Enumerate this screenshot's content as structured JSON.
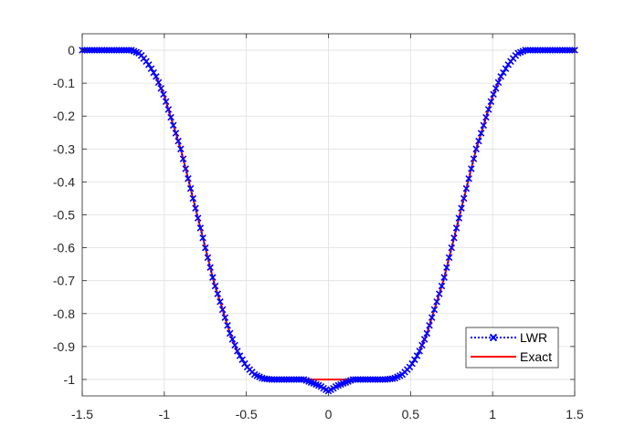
{
  "chart_data": {
    "type": "line",
    "title": "",
    "xlabel": "",
    "ylabel": "",
    "xlim": [
      -1.5,
      1.5
    ],
    "ylim": [
      -1.05,
      0.05
    ],
    "x_ticks": [
      "-1.5",
      "-1",
      "-0.5",
      "0",
      "0.5",
      "1",
      "1.5"
    ],
    "y_ticks": [
      "0",
      "-0.1",
      "-0.2",
      "-0.3",
      "-0.4",
      "-0.5",
      "-0.6",
      "-0.7",
      "-0.8",
      "-0.9",
      "-1"
    ],
    "grid": true,
    "legend_position": "bottom-right",
    "series": [
      {
        "name": "LWR",
        "color": "#0000ff",
        "style": "dotted line with x markers",
        "x": [
          -1.5,
          -1.4,
          -1.3,
          -1.2,
          -1.15,
          -1.1,
          -1.05,
          -1.0,
          -0.95,
          -0.9,
          -0.85,
          -0.8,
          -0.75,
          -0.7,
          -0.65,
          -0.6,
          -0.55,
          -0.5,
          -0.45,
          -0.4,
          -0.35,
          -0.3,
          -0.25,
          -0.2,
          -0.15,
          -0.1,
          -0.05,
          -0.02,
          0.0,
          0.02,
          0.05,
          0.1,
          0.15,
          0.2,
          0.25,
          0.3,
          0.35,
          0.4,
          0.45,
          0.5,
          0.55,
          0.6,
          0.65,
          0.7,
          0.75,
          0.8,
          0.85,
          0.9,
          0.95,
          1.0,
          1.05,
          1.1,
          1.15,
          1.2,
          1.3,
          1.4,
          1.5
        ],
        "values": [
          0,
          0,
          0,
          0,
          -0.01,
          -0.04,
          -0.08,
          -0.14,
          -0.22,
          -0.3,
          -0.4,
          -0.5,
          -0.6,
          -0.7,
          -0.78,
          -0.86,
          -0.92,
          -0.96,
          -0.985,
          -0.997,
          -1.0,
          -1.0,
          -1.0,
          -1.0,
          -1.0,
          -1.01,
          -1.02,
          -1.03,
          -1.035,
          -1.03,
          -1.02,
          -1.01,
          -1.0,
          -1.0,
          -1.0,
          -1.0,
          -1.0,
          -0.997,
          -0.985,
          -0.96,
          -0.92,
          -0.86,
          -0.78,
          -0.7,
          -0.6,
          -0.5,
          -0.4,
          -0.3,
          -0.22,
          -0.14,
          -0.08,
          -0.04,
          -0.01,
          0,
          0,
          0,
          0
        ]
      },
      {
        "name": "Exact",
        "color": "#ff0000",
        "style": "solid line",
        "x": [
          -1.5,
          -1.4,
          -1.3,
          -1.2,
          -1.15,
          -1.1,
          -1.05,
          -1.0,
          -0.95,
          -0.9,
          -0.85,
          -0.8,
          -0.75,
          -0.7,
          -0.65,
          -0.6,
          -0.55,
          -0.5,
          -0.45,
          -0.4,
          -0.35,
          -0.3,
          0.0,
          0.3,
          0.35,
          0.4,
          0.45,
          0.5,
          0.55,
          0.6,
          0.65,
          0.7,
          0.75,
          0.8,
          0.85,
          0.9,
          0.95,
          1.0,
          1.05,
          1.1,
          1.15,
          1.2,
          1.3,
          1.4,
          1.5
        ],
        "values": [
          0,
          0,
          0,
          0,
          -0.01,
          -0.04,
          -0.08,
          -0.14,
          -0.22,
          -0.3,
          -0.4,
          -0.5,
          -0.6,
          -0.7,
          -0.78,
          -0.86,
          -0.92,
          -0.96,
          -0.985,
          -0.997,
          -1.0,
          -1.0,
          -1.0,
          -1.0,
          -1.0,
          -0.997,
          -0.985,
          -0.96,
          -0.92,
          -0.86,
          -0.78,
          -0.7,
          -0.6,
          -0.5,
          -0.4,
          -0.3,
          -0.22,
          -0.14,
          -0.08,
          -0.04,
          -0.01,
          0,
          0,
          0,
          0
        ]
      }
    ]
  }
}
